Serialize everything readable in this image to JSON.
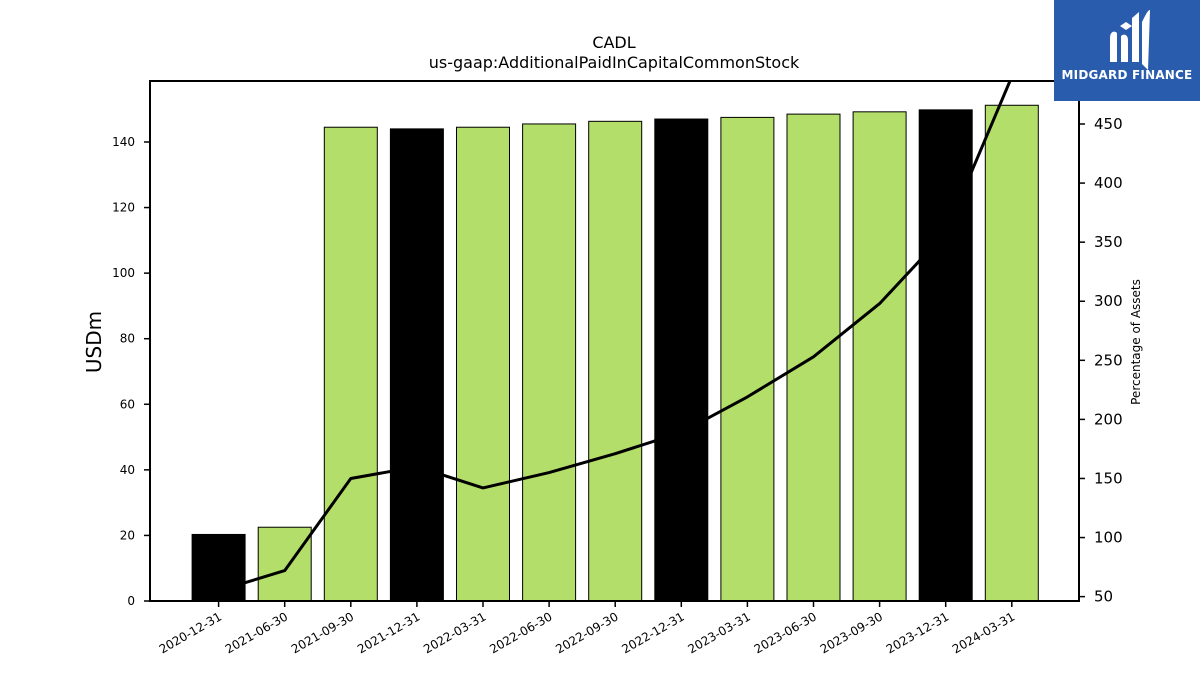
{
  "chart_data": {
    "type": "bar",
    "title": "CADL",
    "subtitle": "us-gaap:AdditionalPaidInCapitalCommonStock",
    "ylabel": "USDm",
    "y2label": "Percentage of Assets",
    "categories": [
      "2020-12-31",
      "2021-06-30",
      "2021-09-30",
      "2021-12-31",
      "2022-03-31",
      "2022-06-30",
      "2022-09-30",
      "2022-12-31",
      "2023-03-31",
      "2023-06-30",
      "2023-09-30",
      "2023-12-31",
      "2024-03-31"
    ],
    "series": [
      {
        "type": "bar",
        "axis": "left",
        "values": [
          20.3,
          22.5,
          144.5,
          144.0,
          144.5,
          145.5,
          146.3,
          147.0,
          147.5,
          148.5,
          149.2,
          149.8,
          151.2
        ],
        "colors": [
          "#000000",
          "#b3de69",
          "#b3de69",
          "#000000",
          "#b3de69",
          "#b3de69",
          "#b3de69",
          "#000000",
          "#b3de69",
          "#b3de69",
          "#b3de69",
          "#000000",
          "#b3de69"
        ]
      },
      {
        "type": "line",
        "axis": "right",
        "color": "#000000",
        "values": [
          55,
          72,
          150,
          160,
          142,
          155,
          171,
          189,
          219,
          253,
          298,
          358,
          490
        ]
      }
    ],
    "ylim": [
      0,
      158.6
    ],
    "y2lim": [
      46.3,
      486.4
    ],
    "yticks": [
      0,
      20,
      40,
      60,
      80,
      100,
      120,
      140
    ],
    "y2ticks": [
      50,
      100,
      150,
      200,
      250,
      300,
      350,
      400,
      450
    ],
    "grid": false,
    "legend": "none"
  },
  "logo": {
    "text": "MIDGARD FINANCE",
    "background": "#2a5cad"
  }
}
